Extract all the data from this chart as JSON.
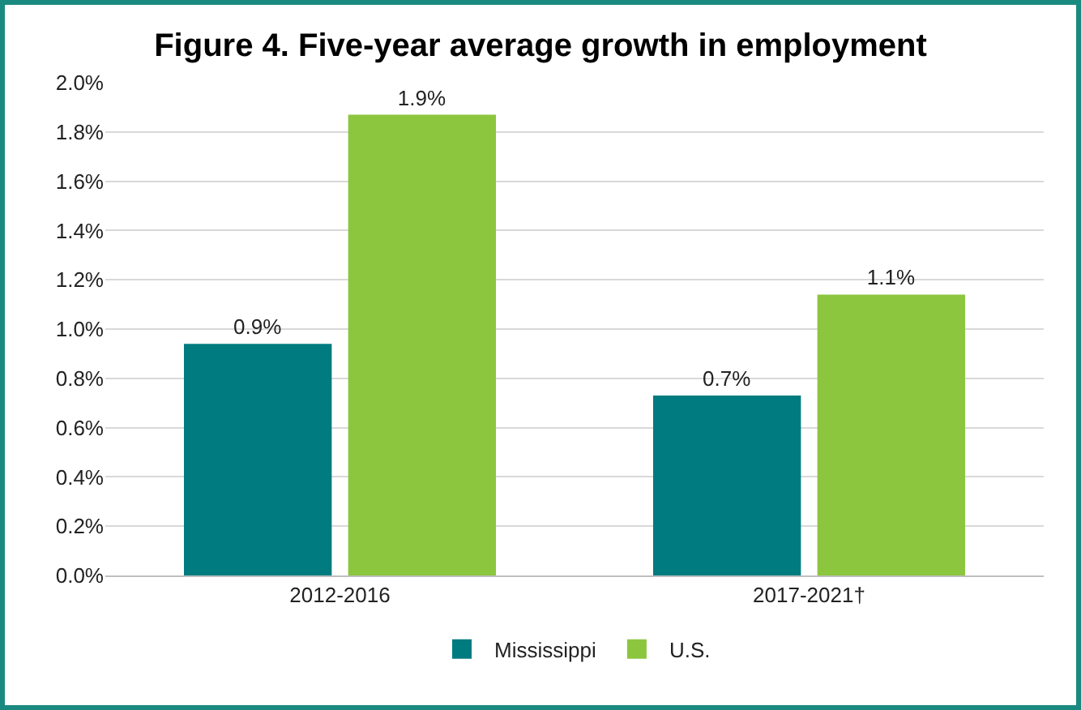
{
  "chart_data": {
    "type": "bar",
    "title": "Figure 4. Five-year average growth in employment",
    "categories": [
      "2012-2016",
      "2017-2021†"
    ],
    "series": [
      {
        "name": "Mississippi",
        "color": "#007b7f",
        "values": [
          0.94,
          0.73
        ],
        "value_labels": [
          "0.9%",
          "0.7%"
        ]
      },
      {
        "name": "U.S.",
        "color": "#8cc63f",
        "values": [
          1.87,
          1.14
        ],
        "value_labels": [
          "1.9%",
          "1.1%"
        ]
      }
    ],
    "ylim": [
      0,
      2.0
    ],
    "yticks": [
      {
        "value": 0,
        "label": "0.0%"
      },
      {
        "value": 0.2,
        "label": "0.2%"
      },
      {
        "value": 0.4,
        "label": "0.4%"
      },
      {
        "value": 0.6,
        "label": "0.6%"
      },
      {
        "value": 0.8,
        "label": "0.8%"
      },
      {
        "value": 1.0,
        "label": "1.0%"
      },
      {
        "value": 1.2,
        "label": "1.2%"
      },
      {
        "value": 1.4,
        "label": "1.4%"
      },
      {
        "value": 1.6,
        "label": "1.6%"
      },
      {
        "value": 1.8,
        "label": "1.8%"
      },
      {
        "value": 2.0,
        "label": "2.0%"
      }
    ],
    "grid": "y",
    "legend": "bottom"
  }
}
